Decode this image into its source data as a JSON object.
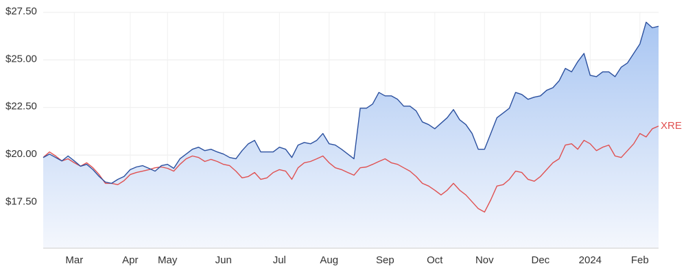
{
  "chart_data": {
    "type": "line",
    "categories": [
      null,
      null,
      null,
      null,
      null,
      "Mar",
      null,
      null,
      null,
      null,
      null,
      null,
      null,
      null,
      "Apr",
      null,
      null,
      null,
      null,
      null,
      "May",
      null,
      null,
      null,
      null,
      null,
      null,
      null,
      null,
      "Jun",
      null,
      null,
      null,
      null,
      null,
      null,
      null,
      null,
      "Jul",
      null,
      null,
      null,
      null,
      null,
      null,
      null,
      "Aug",
      null,
      null,
      null,
      null,
      null,
      null,
      null,
      null,
      "Sep",
      null,
      null,
      null,
      null,
      null,
      null,
      null,
      "Oct",
      null,
      null,
      null,
      null,
      null,
      null,
      null,
      "Nov",
      null,
      null,
      null,
      null,
      null,
      null,
      null,
      null,
      "Dec",
      null,
      null,
      null,
      null,
      null,
      null,
      null,
      "2024",
      null,
      null,
      null,
      null,
      null,
      null,
      null,
      "Feb",
      null,
      null,
      null
    ],
    "series": [
      {
        "color": "#2a4f9e",
        "values": [
          19.87,
          20.05,
          19.87,
          19.69,
          19.95,
          19.69,
          19.41,
          19.51,
          19.23,
          18.87,
          18.58,
          18.51,
          18.72,
          18.87,
          19.23,
          19.37,
          19.44,
          19.3,
          19.15,
          19.44,
          19.51,
          19.3,
          19.8,
          20.05,
          20.3,
          20.41,
          20.23,
          20.3,
          20.16,
          20.05,
          19.87,
          19.8,
          20.23,
          20.59,
          20.77,
          20.16,
          20.16,
          20.16,
          20.41,
          20.3,
          19.87,
          20.52,
          20.66,
          20.59,
          20.77,
          21.13,
          20.59,
          20.52,
          20.3,
          20.05,
          19.8,
          22.46,
          22.46,
          22.68,
          23.29,
          23.11,
          23.11,
          22.93,
          22.57,
          22.57,
          22.32,
          21.74,
          21.6,
          21.38,
          21.67,
          21.96,
          22.39,
          21.85,
          21.6,
          21.13,
          20.3,
          20.3,
          21.13,
          21.96,
          22.21,
          22.46,
          23.29,
          23.18,
          22.93,
          23.04,
          23.11,
          23.4,
          23.54,
          23.9,
          24.55,
          24.37,
          24.91,
          25.34,
          24.19,
          24.12,
          24.37,
          24.37,
          24.12,
          24.62,
          24.84,
          25.34,
          25.84,
          26.98,
          26.69,
          26.77
        ]
      },
      {
        "name": "XRE",
        "color": "#e05050",
        "values": [
          19.87,
          20.16,
          19.95,
          19.69,
          19.8,
          19.59,
          19.41,
          19.59,
          19.33,
          18.97,
          18.51,
          18.51,
          18.44,
          18.65,
          18.97,
          19.08,
          19.15,
          19.23,
          19.33,
          19.37,
          19.3,
          19.15,
          19.51,
          19.8,
          19.95,
          19.87,
          19.66,
          19.77,
          19.66,
          19.51,
          19.44,
          19.15,
          18.8,
          18.87,
          19.08,
          18.72,
          18.8,
          19.08,
          19.23,
          19.15,
          18.72,
          19.33,
          19.59,
          19.66,
          19.8,
          19.95,
          19.59,
          19.33,
          19.23,
          19.08,
          18.94,
          19.33,
          19.37,
          19.51,
          19.66,
          19.8,
          19.59,
          19.51,
          19.33,
          19.15,
          18.87,
          18.51,
          18.37,
          18.15,
          17.9,
          18.15,
          18.51,
          18.15,
          17.9,
          17.54,
          17.18,
          17.0,
          17.64,
          18.37,
          18.44,
          18.72,
          19.15,
          19.08,
          18.72,
          18.62,
          18.87,
          19.23,
          19.59,
          19.8,
          20.52,
          20.59,
          20.3,
          20.77,
          20.59,
          20.23,
          20.41,
          20.52,
          19.95,
          19.87,
          20.23,
          20.59,
          21.13,
          20.95,
          21.38,
          21.52
        ]
      }
    ],
    "ylim": [
      15.1,
      27.5
    ],
    "yticks": [
      {
        "value": 17.5,
        "label": "$17.50"
      },
      {
        "value": 20,
        "label": "$20.00"
      },
      {
        "value": 22.5,
        "label": "$22.50"
      },
      {
        "value": 25,
        "label": "$25.00"
      },
      {
        "value": 27.5,
        "label": "$27.50"
      }
    ],
    "grid": true
  }
}
